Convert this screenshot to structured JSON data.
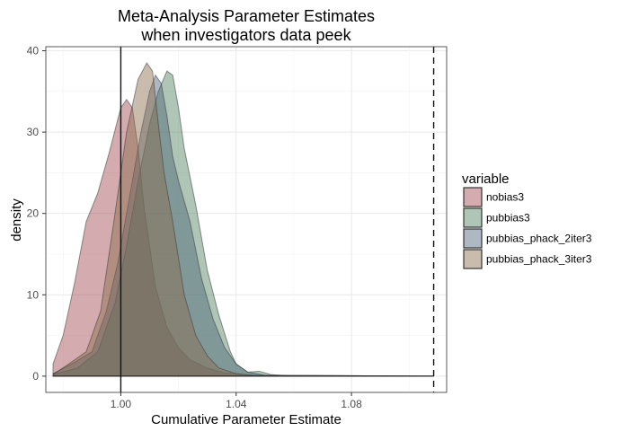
{
  "chart_data": {
    "type": "area",
    "title_lines": [
      "Meta-Analysis Parameter Estimates",
      "when investigators data peek"
    ],
    "xlabel": "Cumulative Parameter Estimate",
    "ylabel": "density",
    "xlim": [
      0.974,
      1.113
    ],
    "ylim": [
      -2,
      40.5
    ],
    "x_ticks": [
      1.0,
      1.04,
      1.08
    ],
    "x_tick_labels": [
      "1.00",
      "1.04",
      "1.08"
    ],
    "y_ticks": [
      0,
      10,
      20,
      30,
      40
    ],
    "y_tick_labels": [
      "0",
      "10",
      "20",
      "30",
      "40"
    ],
    "grid": true,
    "legend_position": "right",
    "legend_title": "variable",
    "reference_lines": [
      {
        "style": "solid",
        "x": 1.0
      },
      {
        "style": "dashed",
        "x": 1.1085
      }
    ],
    "series": [
      {
        "name": "nobias3",
        "color": "#a0474f",
        "points": [
          [
            0.9765,
            1.5
          ],
          [
            0.98,
            5.0
          ],
          [
            0.984,
            11.5
          ],
          [
            0.988,
            19.0
          ],
          [
            0.992,
            22.5
          ],
          [
            0.996,
            27.5
          ],
          [
            1.0,
            33.0
          ],
          [
            1.002,
            34.0
          ],
          [
            1.004,
            33.0
          ],
          [
            1.006,
            28.0
          ],
          [
            1.008,
            21.0
          ],
          [
            1.01,
            16.0
          ],
          [
            1.012,
            11.0
          ],
          [
            1.016,
            6.0
          ],
          [
            1.02,
            3.5
          ],
          [
            1.024,
            2.0
          ],
          [
            1.03,
            1.0
          ],
          [
            1.036,
            0.4
          ],
          [
            1.045,
            0.1
          ],
          [
            1.1085,
            0.0
          ]
        ]
      },
      {
        "name": "pubbias3",
        "color": "#4d7e5a",
        "points": [
          [
            0.9765,
            0.2
          ],
          [
            0.985,
            1.0
          ],
          [
            0.992,
            3.0
          ],
          [
            0.998,
            9.0
          ],
          [
            1.002,
            16.0
          ],
          [
            1.006,
            24.0
          ],
          [
            1.01,
            31.0
          ],
          [
            1.013,
            35.0
          ],
          [
            1.016,
            37.5
          ],
          [
            1.018,
            37.0
          ],
          [
            1.02,
            33.0
          ],
          [
            1.022,
            28.0
          ],
          [
            1.026,
            21.0
          ],
          [
            1.03,
            13.0
          ],
          [
            1.034,
            7.5
          ],
          [
            1.038,
            3.0
          ],
          [
            1.04,
            1.5
          ],
          [
            1.044,
            0.5
          ],
          [
            1.048,
            0.6
          ],
          [
            1.052,
            0.2
          ],
          [
            1.06,
            0.0
          ],
          [
            1.1085,
            0.0
          ]
        ]
      },
      {
        "name": "pubbias_phack_2iter3",
        "color": "#4a6278",
        "points": [
          [
            0.9765,
            0.3
          ],
          [
            0.983,
            1.5
          ],
          [
            0.99,
            3.0
          ],
          [
            0.995,
            8.0
          ],
          [
            0.999,
            14.0
          ],
          [
            1.003,
            22.0
          ],
          [
            1.007,
            30.0
          ],
          [
            1.01,
            35.0
          ],
          [
            1.012,
            37.0
          ],
          [
            1.014,
            36.0
          ],
          [
            1.016,
            32.0
          ],
          [
            1.018,
            27.0
          ],
          [
            1.02,
            24.0
          ],
          [
            1.024,
            19.0
          ],
          [
            1.028,
            12.0
          ],
          [
            1.032,
            7.0
          ],
          [
            1.036,
            3.5
          ],
          [
            1.04,
            1.5
          ],
          [
            1.044,
            0.5
          ],
          [
            1.05,
            0.1
          ],
          [
            1.1085,
            0.0
          ]
        ]
      },
      {
        "name": "pubbias_phack_3iter3",
        "color": "#8a6a4a",
        "points": [
          [
            0.9765,
            0.2
          ],
          [
            0.982,
            1.5
          ],
          [
            0.988,
            3.0
          ],
          [
            0.993,
            8.0
          ],
          [
            0.998,
            20.0
          ],
          [
            1.002,
            30.0
          ],
          [
            1.006,
            36.5
          ],
          [
            1.009,
            38.5
          ],
          [
            1.011,
            37.5
          ],
          [
            1.013,
            31.0
          ],
          [
            1.015,
            25.0
          ],
          [
            1.018,
            19.0
          ],
          [
            1.022,
            10.0
          ],
          [
            1.026,
            5.0
          ],
          [
            1.03,
            2.5
          ],
          [
            1.034,
            1.0
          ],
          [
            1.04,
            0.3
          ],
          [
            1.046,
            0.1
          ],
          [
            1.1085,
            0.0
          ]
        ]
      }
    ]
  }
}
